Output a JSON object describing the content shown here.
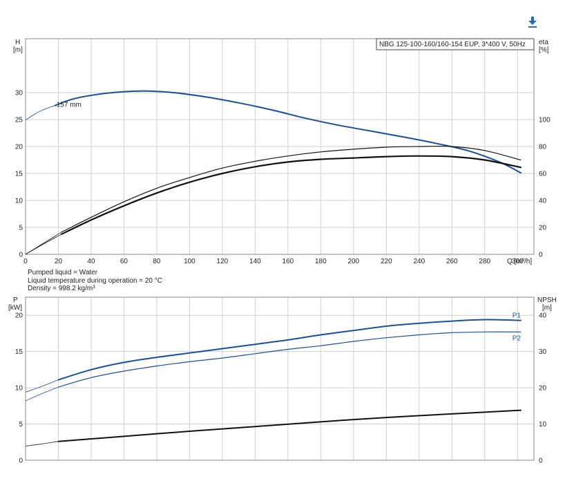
{
  "download_icon": "download-arrow-icon",
  "colors": {
    "blue": "#1f4e8c",
    "black": "#111111",
    "grid": "#d0d0d0"
  },
  "info": [
    "Pumped liquid = Water",
    "Liquid temperature during operation = 20 °C",
    "Density = 998.2 kg/m³"
  ],
  "chart_data": [
    {
      "type": "line",
      "title": "NBG 125-100-160/160-154 EUP, 3*400 V, 50Hz",
      "xlabel": "Q [m³/h]",
      "ylabel_left": [
        "H",
        "[m]"
      ],
      "ylabel_right": [
        "eta",
        "[%]"
      ],
      "xlim": [
        0,
        310
      ],
      "ylim_left": [
        0,
        40
      ],
      "ylim_right": [
        0,
        160
      ],
      "x_ticks": [
        0,
        20,
        40,
        60,
        80,
        100,
        120,
        140,
        160,
        180,
        200,
        220,
        240,
        260,
        280,
        300
      ],
      "y_ticks_left": [
        0,
        5,
        10,
        15,
        20,
        25,
        30
      ],
      "y_ticks_right": [
        0,
        20,
        40,
        60,
        80,
        100
      ],
      "grid": true,
      "annotations": [
        {
          "text": "157 mm",
          "x": 18,
          "y": 27.6
        }
      ],
      "series": [
        {
          "axis": "left",
          "color": "#1f4e8c",
          "width": 2,
          "ext": {
            "x": [
              0,
              5,
              10,
              15,
              18
            ],
            "y": [
              24.9,
              25.9,
              26.7,
              27.3,
              27.6
            ]
          },
          "x": [
            18,
            30,
            50,
            70,
            90,
            110,
            130,
            150,
            170,
            190,
            210,
            230,
            250,
            270,
            290,
            302
          ],
          "y": [
            27.6,
            28.9,
            29.9,
            30.3,
            30.0,
            29.2,
            28.1,
            26.8,
            25.3,
            24.0,
            22.9,
            21.8,
            20.6,
            19.2,
            17.0,
            15.1
          ]
        },
        {
          "axis": "right",
          "color": "#111111",
          "width": 1.2,
          "ext": {
            "x": [
              0,
              10,
              22
            ],
            "y": [
              0,
              7.5,
              16.5
            ]
          },
          "x": [
            22,
            40,
            60,
            80,
            100,
            120,
            140,
            160,
            180,
            200,
            220,
            240,
            260,
            280,
            302
          ],
          "y": [
            16.5,
            27.5,
            39,
            49,
            57,
            64,
            69,
            73,
            76,
            78,
            79.5,
            80,
            80,
            77,
            70
          ]
        },
        {
          "axis": "right",
          "color": "#111111",
          "width": 2.2,
          "ext": {
            "x": [
              0,
              10,
              22
            ],
            "y": [
              0,
              7,
              15
            ]
          },
          "x": [
            22,
            40,
            60,
            80,
            100,
            120,
            140,
            160,
            180,
            200,
            220,
            240,
            260,
            280,
            302
          ],
          "y": [
            15,
            25.5,
            36,
            45.5,
            53.5,
            60,
            65,
            68.5,
            70.5,
            71.5,
            72.5,
            73,
            72.5,
            70,
            64.5
          ]
        }
      ]
    },
    {
      "type": "line",
      "ylabel_left": [
        "P",
        "[kW]"
      ],
      "ylabel_right": [
        "NPSH",
        "[m]"
      ],
      "xlim": [
        0,
        310
      ],
      "ylim_left": [
        0,
        22.5
      ],
      "ylim_right": [
        0,
        45
      ],
      "y_ticks_left": [
        0,
        5,
        10,
        15,
        20
      ],
      "y_ticks_right": [
        0,
        10,
        20,
        30,
        40
      ],
      "grid": true,
      "series": [
        {
          "name": "P1",
          "axis": "left",
          "color": "#1f4e8c",
          "width": 2,
          "ext": {
            "x": [
              0,
              10,
              20
            ],
            "y": [
              9.4,
              10.2,
              11.1
            ]
          },
          "x": [
            20,
            40,
            60,
            80,
            100,
            120,
            140,
            160,
            180,
            200,
            220,
            240,
            260,
            280,
            302
          ],
          "y": [
            11.1,
            12.5,
            13.5,
            14.2,
            14.8,
            15.4,
            16.0,
            16.6,
            17.3,
            17.9,
            18.5,
            18.9,
            19.2,
            19.4,
            19.3
          ]
        },
        {
          "name": "P2",
          "axis": "left",
          "color": "#1f4e8c",
          "width": 1.2,
          "ext": {
            "x": [
              0,
              10,
              20
            ],
            "y": [
              8.2,
              9.2,
              10.1
            ]
          },
          "x": [
            20,
            40,
            60,
            80,
            100,
            120,
            140,
            160,
            180,
            200,
            220,
            240,
            260,
            280,
            302
          ],
          "y": [
            10.1,
            11.4,
            12.3,
            13.0,
            13.6,
            14.1,
            14.7,
            15.3,
            15.8,
            16.4,
            16.9,
            17.3,
            17.6,
            17.7,
            17.7
          ]
        },
        {
          "axis": "right",
          "color": "#111111",
          "width": 2,
          "ext": {
            "x": [
              0,
              10,
              20
            ],
            "y": [
              3.9,
              4.5,
              5.2
            ]
          },
          "x": [
            20,
            60,
            100,
            140,
            180,
            220,
            260,
            302
          ],
          "y": [
            5.2,
            6.6,
            8.0,
            9.3,
            10.6,
            11.8,
            12.8,
            13.8
          ]
        }
      ]
    }
  ]
}
